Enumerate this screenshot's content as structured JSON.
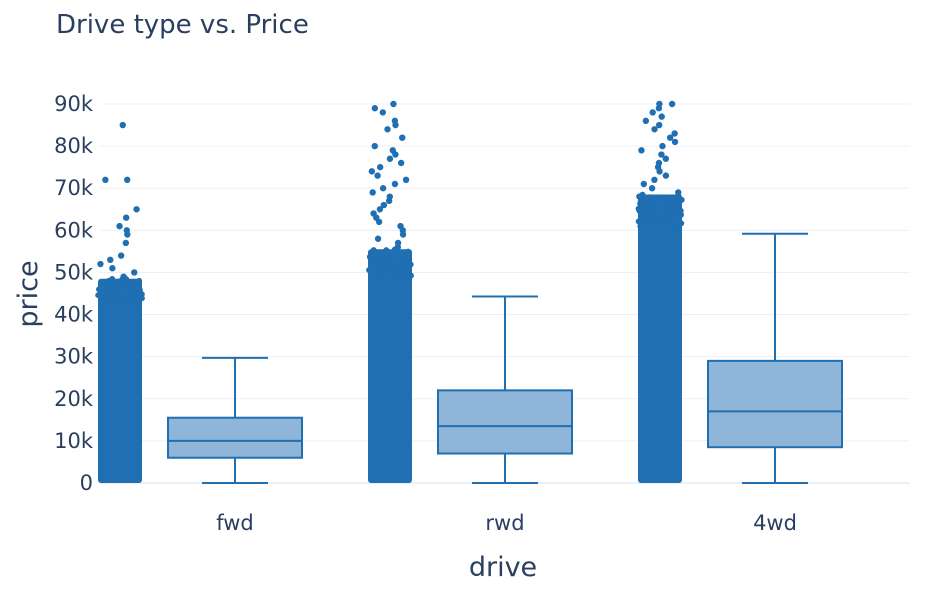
{
  "chart_data": {
    "type": "box",
    "title": "Drive type vs. Price",
    "xlabel": "drive",
    "ylabel": "price",
    "categories": [
      "fwd",
      "rwd",
      "4wd"
    ],
    "ylim": [
      0,
      90000
    ],
    "y_ticks": [
      0,
      10000,
      20000,
      30000,
      40000,
      50000,
      60000,
      70000,
      80000,
      90000
    ],
    "y_tick_labels": [
      "0",
      "10k",
      "20k",
      "30k",
      "40k",
      "50k",
      "60k",
      "70k",
      "80k",
      "90k"
    ],
    "grid": true,
    "color": "#1f6fb2",
    "box_fill": "#8fb5d8",
    "boxes": [
      {
        "category": "fwd",
        "lower_whisker": 0,
        "q1": 6000,
        "median": 10000,
        "q3": 15500,
        "upper_whisker": 29700,
        "dense_points_max": 48500,
        "outliers": [
          49000,
          50000,
          51000,
          52000,
          53000,
          54000,
          57000,
          59000,
          60000,
          61000,
          63000,
          65000,
          72000,
          72000,
          85000
        ]
      },
      {
        "category": "rwd",
        "lower_whisker": 0,
        "q1": 7000,
        "median": 13500,
        "q3": 22000,
        "upper_whisker": 44300,
        "dense_points_max": 55500,
        "outliers": [
          56000,
          57000,
          58000,
          59000,
          60000,
          61000,
          62000,
          63000,
          64000,
          65000,
          66000,
          67000,
          68000,
          69000,
          70000,
          71000,
          72000,
          73000,
          74000,
          75000,
          76000,
          77000,
          78000,
          79000,
          80000,
          82000,
          84000,
          85000,
          86000,
          88000,
          89000,
          90000
        ]
      },
      {
        "category": "4wd",
        "lower_whisker": 0,
        "q1": 8500,
        "median": 17000,
        "q3": 29000,
        "upper_whisker": 59200,
        "dense_points_max": 68500,
        "outliers": [
          69000,
          70000,
          71000,
          72000,
          73000,
          74000,
          75000,
          76000,
          77000,
          78000,
          79000,
          80000,
          81000,
          82000,
          83000,
          84000,
          85000,
          86000,
          87000,
          88000,
          89000,
          90000,
          90000
        ]
      }
    ]
  }
}
